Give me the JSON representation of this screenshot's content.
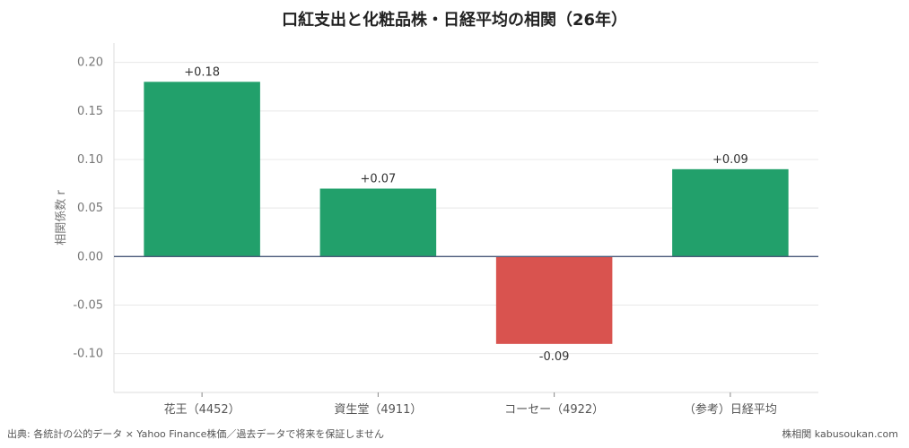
{
  "chart_data": {
    "type": "bar",
    "title": "口紅支出と化粧品株・日経平均の相関（26年）",
    "ylabel": "相関係数 r",
    "xlabel": "",
    "categories": [
      "花王（4452）",
      "資生堂（4911）",
      "コーセー（4922）",
      "（参考）日経平均"
    ],
    "values": [
      0.18,
      0.07,
      -0.09,
      0.09
    ],
    "value_labels": [
      "+0.18",
      "+0.07",
      "-0.09",
      "+0.09"
    ],
    "ylim": [
      -0.14,
      0.22
    ],
    "yticks": [
      0.2,
      0.15,
      0.1,
      0.05,
      0.0,
      -0.05,
      -0.1
    ],
    "ytick_labels": [
      "0.20",
      "0.15",
      "0.10",
      "0.05",
      "0.00",
      "-0.05",
      "-0.10"
    ],
    "grid": true,
    "colors": {
      "positive": "#22a06b",
      "negative": "#d9534f",
      "zero_line": "#4a5a7a",
      "grid": "#e8e8e8",
      "axis": "#dddddd",
      "tick_text": "#777777",
      "label_text": "#333333"
    }
  },
  "footer": {
    "source": "出典: 各統計の公的データ × Yahoo Finance株価／過去データで将来を保証しません",
    "brand": "株相関 kabusoukan.com"
  }
}
